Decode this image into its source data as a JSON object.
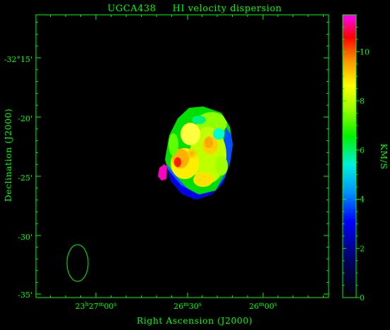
{
  "chart_data": {
    "type": "heatmap",
    "title": "UGCA438     HI velocity dispersion",
    "xlabel": "Right Ascension (J2000)",
    "ylabel": "Declination (J2000)",
    "x_ticks": [
      {
        "h": "23",
        "m": "27",
        "s": "00",
        "label": "23h27m00s"
      },
      {
        "h": "",
        "m": "26",
        "s": "30",
        "label": "26m30s"
      },
      {
        "h": "",
        "m": "26",
        "s": "00",
        "label": "26m00s"
      }
    ],
    "y_ticks": [
      "-32°15'",
      "-20'",
      "-25'",
      "-30'",
      "-35'"
    ],
    "colorbar": {
      "label": "KM/S",
      "range": [
        0,
        11.5
      ],
      "ticks": [
        "0",
        "2",
        "4",
        "6",
        "8",
        "10"
      ]
    },
    "beam": "ellipse",
    "colors": {
      "axes": "#00ff00",
      "background": "#000000"
    }
  }
}
